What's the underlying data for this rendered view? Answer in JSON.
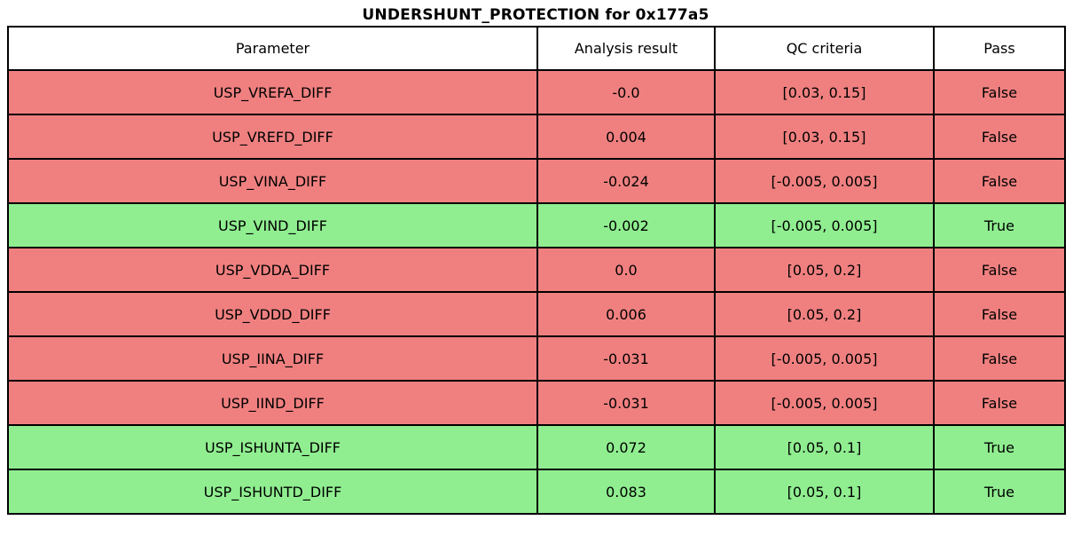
{
  "chart_data": {
    "type": "table",
    "title": "UNDERSHUNT_PROTECTION for 0x177a5",
    "headers": [
      "Parameter",
      "Analysis result",
      "QC criteria",
      "Pass"
    ],
    "rows": [
      {
        "parameter": "USP_VREFA_DIFF",
        "result": "-0.0",
        "criteria": "[0.03, 0.15]",
        "pass": "False"
      },
      {
        "parameter": "USP_VREFD_DIFF",
        "result": "0.004",
        "criteria": "[0.03, 0.15]",
        "pass": "False"
      },
      {
        "parameter": "USP_VINA_DIFF",
        "result": "-0.024",
        "criteria": "[-0.005, 0.005]",
        "pass": "False"
      },
      {
        "parameter": "USP_VIND_DIFF",
        "result": "-0.002",
        "criteria": "[-0.005, 0.005]",
        "pass": "True"
      },
      {
        "parameter": "USP_VDDA_DIFF",
        "result": "0.0",
        "criteria": "[0.05, 0.2]",
        "pass": "False"
      },
      {
        "parameter": "USP_VDDD_DIFF",
        "result": "0.006",
        "criteria": "[0.05, 0.2]",
        "pass": "False"
      },
      {
        "parameter": "USP_IINA_DIFF",
        "result": "-0.031",
        "criteria": "[-0.005, 0.005]",
        "pass": "False"
      },
      {
        "parameter": "USP_IIND_DIFF",
        "result": "-0.031",
        "criteria": "[-0.005, 0.005]",
        "pass": "False"
      },
      {
        "parameter": "USP_ISHUNTA_DIFF",
        "result": "0.072",
        "criteria": "[0.05, 0.1]",
        "pass": "True"
      },
      {
        "parameter": "USP_ISHUNTD_DIFF",
        "result": "0.083",
        "criteria": "[0.05, 0.1]",
        "pass": "True"
      }
    ],
    "colors": {
      "pass_row_bg": "#90ee90",
      "fail_row_bg": "#f08080",
      "header_bg": "#ffffff",
      "border": "#000000",
      "text": "#000000"
    },
    "layout": {
      "grid": "off",
      "legend": "none"
    }
  }
}
